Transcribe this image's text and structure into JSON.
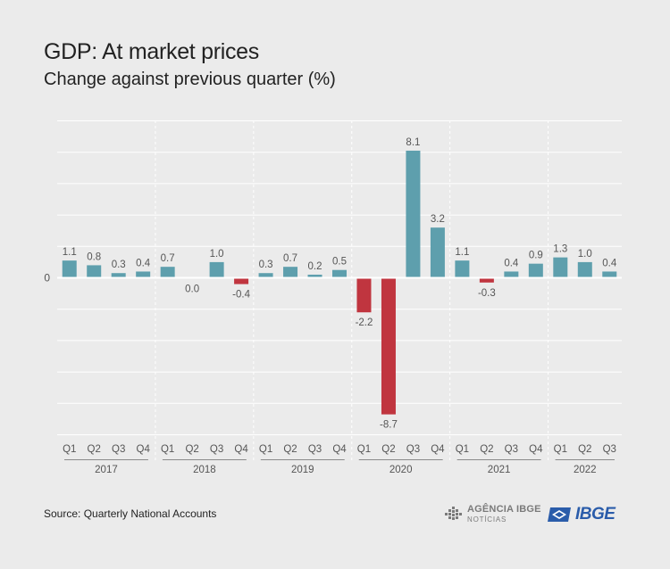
{
  "header": {
    "title": "GDP: At market prices",
    "subtitle": "Change against previous quarter (%)"
  },
  "footer": {
    "source": "Source: Quarterly National Accounts",
    "agencia_line1": "AGÊNCIA IBGE",
    "agencia_line2": "NOTÍCIAS",
    "ibge_logo": "IBGE"
  },
  "colors": {
    "positive": "#5e9fad",
    "negative": "#c0353f",
    "background": "#ebebeb",
    "grid": "#ffffff",
    "logo_blue": "#2a5caa"
  },
  "chart_data": {
    "type": "bar",
    "zero_label": "0",
    "ylim": [
      -10,
      10
    ],
    "grid": true,
    "quarters": [
      "Q1",
      "Q2",
      "Q3",
      "Q4",
      "Q1",
      "Q2",
      "Q3",
      "Q4",
      "Q1",
      "Q2",
      "Q3",
      "Q4",
      "Q1",
      "Q2",
      "Q3",
      "Q4",
      "Q1",
      "Q2",
      "Q3",
      "Q4",
      "Q1",
      "Q2",
      "Q3"
    ],
    "years": [
      {
        "label": "2017",
        "count": 4
      },
      {
        "label": "2018",
        "count": 4
      },
      {
        "label": "2019",
        "count": 4
      },
      {
        "label": "2020",
        "count": 4
      },
      {
        "label": "2021",
        "count": 4
      },
      {
        "label": "2022",
        "count": 3
      }
    ],
    "values": [
      1.1,
      0.8,
      0.3,
      0.4,
      0.7,
      0.0,
      1.0,
      -0.4,
      0.3,
      0.7,
      0.2,
      0.5,
      -2.2,
      -8.7,
      8.1,
      3.2,
      1.1,
      -0.3,
      0.4,
      0.9,
      1.3,
      1.0,
      0.4
    ],
    "value_labels": [
      "1.1",
      "0.8",
      "0.3",
      "0.4",
      "0.7",
      "0.0",
      "1.0",
      "-0.4",
      "0.3",
      "0.7",
      "0.2",
      "0.5",
      "-2.2",
      "-8.7",
      "8.1",
      "3.2",
      "1.1",
      "-0.3",
      "0.4",
      "0.9",
      "1.3",
      "1.0",
      "0.4"
    ]
  }
}
